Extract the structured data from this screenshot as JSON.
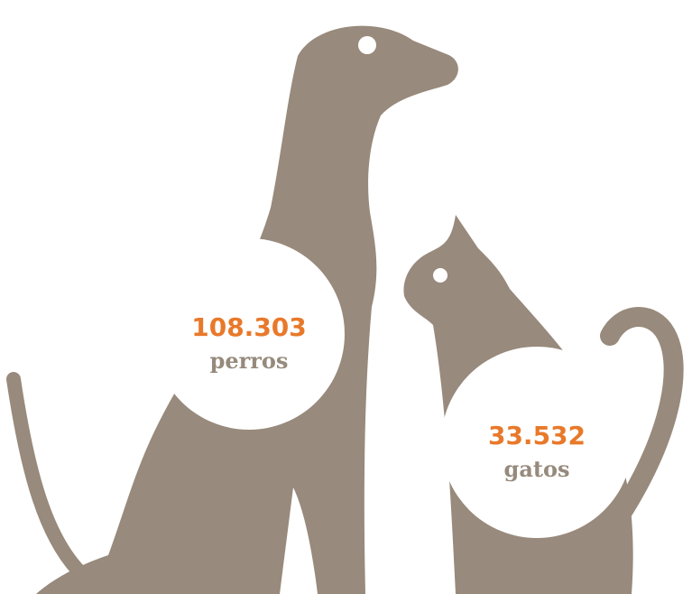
{
  "dog": {
    "count": "108.303",
    "label": "perros"
  },
  "cat": {
    "count": "33.532",
    "label": "gatos"
  }
}
